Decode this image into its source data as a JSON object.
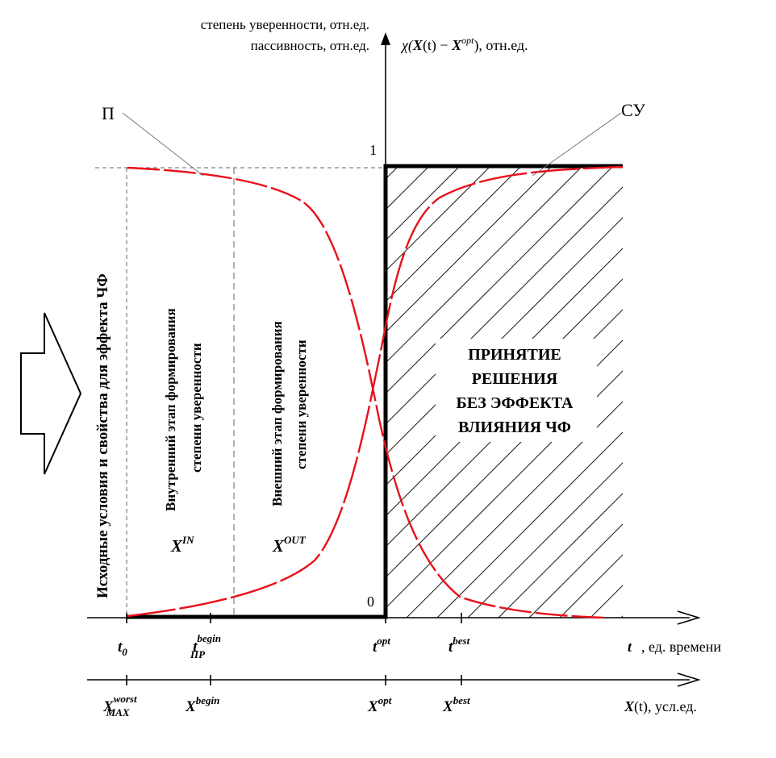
{
  "axes": {
    "y_left_label_line1": "степень уверенности, отн.ед.",
    "y_left_label_line2": "пассивность, отн.ед.",
    "y_right_label": "χ(X(t) − X^opt), отн.ед.",
    "y_right_label_parts": {
      "chi": "χ(",
      "x": "X",
      "t": "(t) − ",
      "xopt": "X",
      "opt": "opt",
      "tail": "), отн.ед."
    },
    "tick_one": "1",
    "tick_zero": "0",
    "t_axis_label": "t , ед. времени",
    "t_axis_parts": {
      "t": "t",
      "rest": ", ед. времени"
    },
    "x_axis_label": "X(t), усл.ед.",
    "x_axis_parts": {
      "x": "X",
      "rest": "(t), усл.ед."
    }
  },
  "curve_labels": {
    "passivity": "П",
    "confidence": "СУ"
  },
  "t_ticks": [
    {
      "base": "t",
      "sub": "0",
      "sup": ""
    },
    {
      "base": "t",
      "sub": "ПР",
      "sup": "begin"
    },
    {
      "base": "t",
      "sub": "",
      "sup": "opt"
    },
    {
      "base": "t",
      "sub": "",
      "sup": "best"
    }
  ],
  "x_ticks": [
    {
      "base": "X",
      "sub": "MAX",
      "sup": "worst"
    },
    {
      "base": "X",
      "sub": "",
      "sup": "begin"
    },
    {
      "base": "X",
      "sub": "",
      "sup": "opt"
    },
    {
      "base": "X",
      "sub": "",
      "sup": "best"
    }
  ],
  "regions": {
    "initial_conditions": "Исходные условия и свойства для эффекта ЧФ",
    "internal_stage_line1": "Внутренний этап формирования",
    "internal_stage_line2": "степени уверенности",
    "external_stage_line1": "Внешний этап формирования",
    "external_stage_line2": "степени уверенности",
    "x_in": {
      "base": "X",
      "sup": "IN"
    },
    "x_out": {
      "base": "X",
      "sup": "OUT"
    },
    "decision_line1": "ПРИНЯТИЕ",
    "decision_line2": "РЕШЕНИЯ",
    "decision_line3": "БЕЗ ЭФФЕКТА",
    "decision_line4": "ВЛИЯНИЯ ЧФ"
  },
  "colors": {
    "curve": "#e8101a",
    "axis": "#000000",
    "hatch": "#222222",
    "guide": "#666666"
  }
}
